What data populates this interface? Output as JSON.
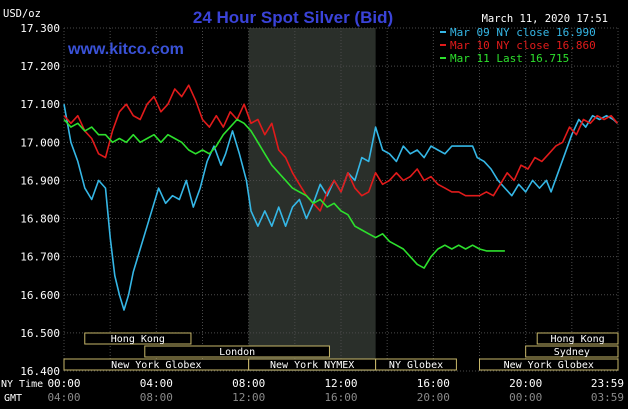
{
  "chart_data": {
    "type": "line",
    "title": "24 Hour Spot Silver (Bid)",
    "unit": "USD/oz",
    "date": "March 11, 2020 17:51",
    "watermark": "www.kitco.com",
    "ylim": [
      16.4,
      17.3
    ],
    "y_ticks": [
      "17.300",
      "17.200",
      "17.100",
      "17.000",
      "16.900",
      "16.800",
      "16.700",
      "16.600",
      "16.500",
      "16.400"
    ],
    "x_hours": [
      0,
      4,
      8,
      12,
      16,
      20,
      24
    ],
    "x_ticks_ny": [
      "00:00",
      "04:00",
      "08:00",
      "12:00",
      "16:00",
      "20:00",
      "23:59"
    ],
    "x_ticks_gmt": [
      "04:00",
      "08:00",
      "12:00",
      "16:00",
      "20:00",
      "00:00",
      "03:59"
    ],
    "x_axis_label_ny": "NY Time",
    "x_axis_label_gmt": "GMT",
    "series": [
      {
        "name": "Mar 09 NY close 16.990",
        "color": "#35b7e6",
        "points": [
          [
            0.0,
            17.1
          ],
          [
            0.3,
            17.0
          ],
          [
            0.6,
            16.95
          ],
          [
            0.9,
            16.88
          ],
          [
            1.2,
            16.85
          ],
          [
            1.5,
            16.9
          ],
          [
            1.8,
            16.88
          ],
          [
            2.0,
            16.75
          ],
          [
            2.2,
            16.65
          ],
          [
            2.4,
            16.6
          ],
          [
            2.6,
            16.56
          ],
          [
            2.8,
            16.6
          ],
          [
            3.0,
            16.66
          ],
          [
            3.3,
            16.72
          ],
          [
            3.6,
            16.78
          ],
          [
            3.9,
            16.84
          ],
          [
            4.1,
            16.88
          ],
          [
            4.4,
            16.84
          ],
          [
            4.7,
            16.86
          ],
          [
            5.0,
            16.85
          ],
          [
            5.3,
            16.9
          ],
          [
            5.6,
            16.83
          ],
          [
            5.9,
            16.88
          ],
          [
            6.2,
            16.95
          ],
          [
            6.5,
            16.99
          ],
          [
            6.8,
            16.94
          ],
          [
            7.0,
            16.97
          ],
          [
            7.3,
            17.03
          ],
          [
            7.6,
            16.97
          ],
          [
            7.9,
            16.9
          ],
          [
            8.1,
            16.82
          ],
          [
            8.4,
            16.78
          ],
          [
            8.7,
            16.82
          ],
          [
            9.0,
            16.78
          ],
          [
            9.3,
            16.83
          ],
          [
            9.6,
            16.78
          ],
          [
            9.9,
            16.83
          ],
          [
            10.2,
            16.85
          ],
          [
            10.5,
            16.8
          ],
          [
            10.8,
            16.84
          ],
          [
            11.1,
            16.89
          ],
          [
            11.4,
            16.86
          ],
          [
            11.7,
            16.9
          ],
          [
            12.0,
            16.87
          ],
          [
            12.3,
            16.92
          ],
          [
            12.6,
            16.9
          ],
          [
            12.9,
            16.96
          ],
          [
            13.2,
            16.95
          ],
          [
            13.5,
            17.04
          ],
          [
            13.8,
            16.98
          ],
          [
            14.1,
            16.97
          ],
          [
            14.4,
            16.95
          ],
          [
            14.7,
            16.99
          ],
          [
            15.0,
            16.97
          ],
          [
            15.3,
            16.98
          ],
          [
            15.6,
            16.96
          ],
          [
            15.9,
            16.99
          ],
          [
            16.2,
            16.98
          ],
          [
            16.5,
            16.97
          ],
          [
            16.8,
            16.99
          ],
          [
            17.2,
            16.99
          ],
          [
            17.7,
            16.99
          ],
          [
            17.9,
            16.96
          ],
          [
            18.2,
            16.95
          ],
          [
            18.5,
            16.93
          ],
          [
            18.8,
            16.9
          ],
          [
            19.1,
            16.88
          ],
          [
            19.4,
            16.86
          ],
          [
            19.7,
            16.89
          ],
          [
            20.0,
            16.87
          ],
          [
            20.3,
            16.9
          ],
          [
            20.6,
            16.88
          ],
          [
            20.9,
            16.9
          ],
          [
            21.1,
            16.87
          ],
          [
            21.4,
            16.92
          ],
          [
            21.7,
            16.97
          ],
          [
            22.0,
            17.02
          ],
          [
            22.3,
            17.06
          ],
          [
            22.6,
            17.04
          ],
          [
            22.9,
            17.07
          ],
          [
            23.2,
            17.06
          ],
          [
            23.5,
            17.07
          ],
          [
            23.8,
            17.06
          ],
          [
            23.98,
            17.05
          ]
        ]
      },
      {
        "name": "Mar 10 NY close 16.860",
        "color": "#e11b1b",
        "points": [
          [
            0.0,
            17.07
          ],
          [
            0.3,
            17.05
          ],
          [
            0.6,
            17.07
          ],
          [
            0.9,
            17.03
          ],
          [
            1.2,
            17.01
          ],
          [
            1.5,
            16.97
          ],
          [
            1.8,
            16.96
          ],
          [
            2.1,
            17.03
          ],
          [
            2.4,
            17.08
          ],
          [
            2.7,
            17.1
          ],
          [
            3.0,
            17.07
          ],
          [
            3.3,
            17.06
          ],
          [
            3.6,
            17.1
          ],
          [
            3.9,
            17.12
          ],
          [
            4.2,
            17.08
          ],
          [
            4.5,
            17.1
          ],
          [
            4.8,
            17.14
          ],
          [
            5.1,
            17.12
          ],
          [
            5.4,
            17.15
          ],
          [
            5.7,
            17.11
          ],
          [
            6.0,
            17.06
          ],
          [
            6.3,
            17.04
          ],
          [
            6.6,
            17.07
          ],
          [
            6.9,
            17.04
          ],
          [
            7.2,
            17.08
          ],
          [
            7.5,
            17.06
          ],
          [
            7.8,
            17.1
          ],
          [
            8.1,
            17.05
          ],
          [
            8.4,
            17.06
          ],
          [
            8.7,
            17.02
          ],
          [
            9.0,
            17.05
          ],
          [
            9.3,
            16.98
          ],
          [
            9.6,
            16.96
          ],
          [
            9.9,
            16.92
          ],
          [
            10.2,
            16.89
          ],
          [
            10.5,
            16.86
          ],
          [
            10.8,
            16.84
          ],
          [
            11.1,
            16.82
          ],
          [
            11.4,
            16.87
          ],
          [
            11.7,
            16.9
          ],
          [
            12.0,
            16.87
          ],
          [
            12.3,
            16.92
          ],
          [
            12.6,
            16.88
          ],
          [
            12.9,
            16.86
          ],
          [
            13.2,
            16.87
          ],
          [
            13.5,
            16.92
          ],
          [
            13.8,
            16.89
          ],
          [
            14.1,
            16.9
          ],
          [
            14.4,
            16.92
          ],
          [
            14.7,
            16.9
          ],
          [
            15.0,
            16.91
          ],
          [
            15.3,
            16.93
          ],
          [
            15.6,
            16.9
          ],
          [
            15.9,
            16.91
          ],
          [
            16.2,
            16.89
          ],
          [
            16.5,
            16.88
          ],
          [
            16.8,
            16.87
          ],
          [
            17.1,
            16.87
          ],
          [
            17.4,
            16.86
          ],
          [
            17.7,
            16.86
          ],
          [
            18.0,
            16.86
          ],
          [
            18.3,
            16.87
          ],
          [
            18.6,
            16.86
          ],
          [
            18.9,
            16.89
          ],
          [
            19.2,
            16.92
          ],
          [
            19.5,
            16.9
          ],
          [
            19.8,
            16.94
          ],
          [
            20.1,
            16.93
          ],
          [
            20.4,
            16.96
          ],
          [
            20.7,
            16.95
          ],
          [
            21.0,
            16.97
          ],
          [
            21.3,
            16.99
          ],
          [
            21.6,
            17.0
          ],
          [
            21.9,
            17.04
          ],
          [
            22.2,
            17.02
          ],
          [
            22.5,
            17.06
          ],
          [
            22.8,
            17.05
          ],
          [
            23.1,
            17.07
          ],
          [
            23.4,
            17.06
          ],
          [
            23.7,
            17.07
          ],
          [
            23.98,
            17.05
          ]
        ]
      },
      {
        "name": "Mar 11 Last 16.715",
        "color": "#2de02d",
        "points": [
          [
            0.0,
            17.06
          ],
          [
            0.3,
            17.04
          ],
          [
            0.6,
            17.05
          ],
          [
            0.9,
            17.03
          ],
          [
            1.2,
            17.04
          ],
          [
            1.5,
            17.02
          ],
          [
            1.8,
            17.02
          ],
          [
            2.1,
            17.0
          ],
          [
            2.4,
            17.01
          ],
          [
            2.7,
            17.0
          ],
          [
            3.0,
            17.02
          ],
          [
            3.3,
            17.0
          ],
          [
            3.6,
            17.01
          ],
          [
            3.9,
            17.02
          ],
          [
            4.2,
            17.0
          ],
          [
            4.5,
            17.02
          ],
          [
            4.8,
            17.01
          ],
          [
            5.1,
            17.0
          ],
          [
            5.4,
            16.98
          ],
          [
            5.7,
            16.97
          ],
          [
            6.0,
            16.98
          ],
          [
            6.3,
            16.97
          ],
          [
            6.6,
            16.99
          ],
          [
            6.9,
            17.02
          ],
          [
            7.2,
            17.04
          ],
          [
            7.5,
            17.06
          ],
          [
            7.8,
            17.05
          ],
          [
            8.1,
            17.03
          ],
          [
            8.4,
            17.0
          ],
          [
            8.7,
            16.97
          ],
          [
            9.0,
            16.94
          ],
          [
            9.3,
            16.92
          ],
          [
            9.6,
            16.9
          ],
          [
            9.9,
            16.88
          ],
          [
            10.2,
            16.87
          ],
          [
            10.5,
            16.86
          ],
          [
            10.8,
            16.84
          ],
          [
            11.1,
            16.85
          ],
          [
            11.4,
            16.83
          ],
          [
            11.7,
            16.84
          ],
          [
            12.0,
            16.82
          ],
          [
            12.3,
            16.81
          ],
          [
            12.6,
            16.78
          ],
          [
            12.9,
            16.77
          ],
          [
            13.2,
            16.76
          ],
          [
            13.5,
            16.75
          ],
          [
            13.8,
            16.76
          ],
          [
            14.1,
            16.74
          ],
          [
            14.4,
            16.73
          ],
          [
            14.7,
            16.72
          ],
          [
            15.0,
            16.7
          ],
          [
            15.3,
            16.68
          ],
          [
            15.6,
            16.67
          ],
          [
            15.9,
            16.7
          ],
          [
            16.2,
            16.72
          ],
          [
            16.5,
            16.73
          ],
          [
            16.8,
            16.72
          ],
          [
            17.1,
            16.73
          ],
          [
            17.4,
            16.72
          ],
          [
            17.7,
            16.73
          ],
          [
            18.0,
            16.72
          ],
          [
            18.3,
            16.715
          ],
          [
            18.7,
            16.715
          ],
          [
            19.1,
            16.715
          ]
        ]
      }
    ],
    "markets": [
      {
        "name": "Hong Kong",
        "row": 0,
        "start": 0.9,
        "end": 5.5
      },
      {
        "name": "Hong Kong",
        "row": 0,
        "start": 20.5,
        "end": 24.0
      },
      {
        "name": "London",
        "row": 1,
        "start": 3.5,
        "end": 11.5
      },
      {
        "name": "Sydney",
        "row": 1,
        "start": 20.0,
        "end": 24.0
      },
      {
        "name": "New York Globex",
        "row": 2,
        "start": 0.0,
        "end": 8.0
      },
      {
        "name": "New York NYMEX",
        "row": 2,
        "start": 8.0,
        "end": 13.5
      },
      {
        "name": "NY Globex",
        "row": 2,
        "start": 13.5,
        "end": 17.0
      },
      {
        "name": "New York Globex",
        "row": 2,
        "start": 18.0,
        "end": 24.0
      }
    ],
    "shaded_region_hours": [
      8.0,
      13.5
    ],
    "grid": true,
    "legend_position": "top-right"
  },
  "colors": {
    "background": "#000000",
    "title": "#3a43d8",
    "watermark": "#3a52d8",
    "text": "#ffffff",
    "grid": "#4a4a4a",
    "shaded": "#2a2f2a",
    "market_box": "#c7b76a",
    "market_box_fill": "#000000"
  }
}
